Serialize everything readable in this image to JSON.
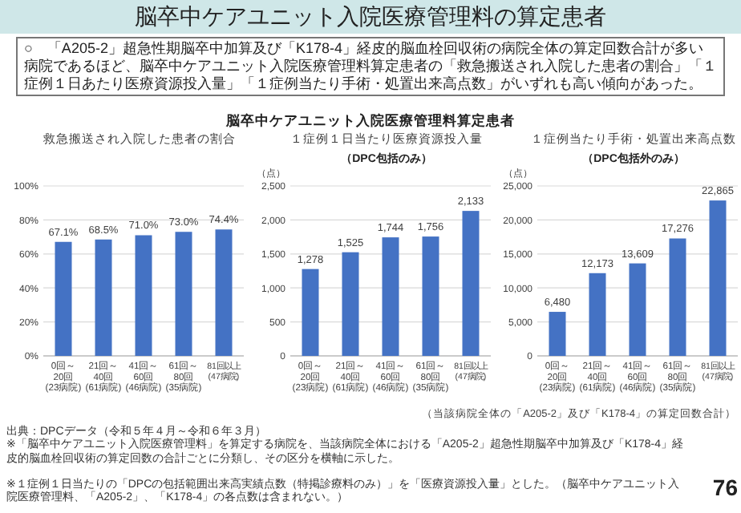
{
  "chart_data": [
    {
      "type": "bar",
      "title": "救急搬送され入院した患者の割合",
      "categories": [
        "0回～20回\n(23病院)",
        "21回～40回\n(61病院)",
        "41回～60回\n(46病院)",
        "61回～80回\n(35病院)",
        "81回以上\n(47病院)"
      ],
      "values": [
        67.1,
        68.5,
        71.0,
        73.0,
        74.4
      ],
      "value_labels": [
        "67.1%",
        "68.5%",
        "71.0%",
        "73.0%",
        "74.4%"
      ],
      "color": "#4472c4",
      "ylim": [
        0,
        100
      ],
      "yticks": [
        {
          "value": 0,
          "label": "0%"
        },
        {
          "value": 20,
          "label": "20%"
        },
        {
          "value": 40,
          "label": "40%"
        },
        {
          "value": 60,
          "label": "60%"
        },
        {
          "value": 80,
          "label": "80%"
        },
        {
          "value": 100,
          "label": "100%"
        }
      ],
      "grid": "y",
      "annotations": [
        "脳卒中ケアユニット入院医療管理料の算定患者",
        "○　「A205-2」超急性期脳卒中加算及び「K178-4」経皮的脳血栓回収術の病院全体の算定回数合計が多い病院であるほど、脳卒中ケアユニット入院医療管理料算定患者の「救急搬送され入院した患者の割合」「１症例１日あたり医療資源投入量」「１症例当たり手術・処置出来高点数」がいずれも高い傾向があった。",
        "脳卒中ケアユニット入院医療管理料算定患者",
        "出典：DPCデータ（令和５年４月～令和６年３月）",
        "※「脳卒中ケアユニット入院医療管理料」を算定する病院を、当該病院全体における「A205-2」超急性期脳卒中加算及び「K178-4」経皮的脳血栓回収術の算定回数の合計ごとに分類し、その区分を横軸に示した。",
        "※１症例１日当たりの「DPCの包括範囲出来高実績点数（特掲診療料のみ）」を「医療資源投入量」とした。（脳卒中ケアユニット入院医療管理料、「A205-2」、「K178-4」の各点数は含まれない。）",
        "76"
      ]
    },
    {
      "type": "bar",
      "title": "１症例１日当たり医療資源投入量",
      "subtitle": "（DPC包括のみ）",
      "ylabel": "（点）",
      "categories": [
        "0回～20回\n(23病院)",
        "21回～40回\n(61病院)",
        "41回～60回\n(46病院)",
        "61回～80回\n(35病院)",
        "81回以上\n(47病院)"
      ],
      "values": [
        1278,
        1525,
        1744,
        1756,
        2133
      ],
      "value_labels": [
        "1,278",
        "1,525",
        "1,744",
        "1,756",
        "2,133"
      ],
      "color": "#4472c4",
      "ylim": [
        0,
        2500
      ],
      "yticks": [
        {
          "value": 0,
          "label": "0"
        },
        {
          "value": 500,
          "label": "500"
        },
        {
          "value": 1000,
          "label": "1,000"
        },
        {
          "value": 1500,
          "label": "1,500"
        },
        {
          "value": 2000,
          "label": "2,000"
        },
        {
          "value": 2500,
          "label": "2,500"
        }
      ],
      "grid": "y"
    },
    {
      "type": "bar",
      "title": "１症例当たり手術・処置出来高点数",
      "subtitle": "（DPC包括外のみ）",
      "ylabel": "（点）",
      "xlabel": "（当該病院全体の「A205-2」及び「K178-4」の算定回数合計）",
      "categories": [
        "0回～20回\n(23病院)",
        "21回～40回\n(61病院)",
        "41回～60回\n(46病院)",
        "61回～80回\n(35病院)",
        "81回以上\n(47病院)"
      ],
      "values": [
        6480,
        12173,
        13609,
        17276,
        22865
      ],
      "value_labels": [
        "6,480",
        "12,173",
        "13,609",
        "17,276",
        "22,865"
      ],
      "color": "#4472c4",
      "ylim": [
        0,
        25000
      ],
      "yticks": [
        {
          "value": 0,
          "label": "0"
        },
        {
          "value": 5000,
          "label": "5,000"
        },
        {
          "value": 10000,
          "label": "10,000"
        },
        {
          "value": 15000,
          "label": "15,000"
        },
        {
          "value": 20000,
          "label": "20,000"
        },
        {
          "value": 25000,
          "label": "25,000"
        }
      ],
      "grid": "y"
    }
  ]
}
